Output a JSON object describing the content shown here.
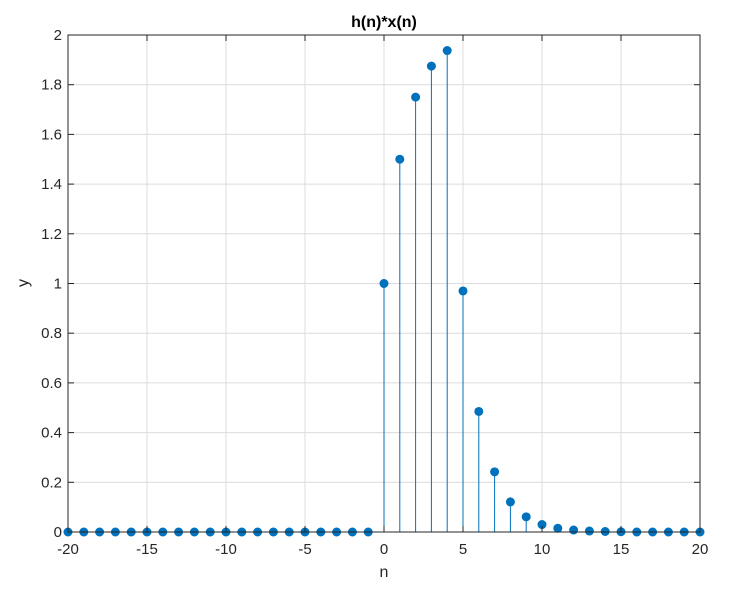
{
  "chart_data": {
    "type": "stem",
    "title": "h(n)*x(n)",
    "xlabel": "n",
    "ylabel": "y",
    "xlim": [
      -20,
      20
    ],
    "ylim": [
      0,
      2
    ],
    "grid": true,
    "color": "#0072BD",
    "xticks": [
      "-20",
      "-15",
      "-10",
      "-5",
      "0",
      "5",
      "10",
      "15",
      "20"
    ],
    "yticks": [
      "0",
      "0.2",
      "0.4",
      "0.6",
      "0.8",
      "1",
      "1.2",
      "1.4",
      "1.6",
      "1.8",
      "2"
    ],
    "x": [
      -20,
      -19,
      -18,
      -17,
      -16,
      -15,
      -14,
      -13,
      -12,
      -11,
      -10,
      -9,
      -8,
      -7,
      -6,
      -5,
      -4,
      -3,
      -2,
      -1,
      0,
      1,
      2,
      3,
      4,
      5,
      6,
      7,
      8,
      9,
      10,
      11,
      12,
      13,
      14,
      15,
      16,
      17,
      18,
      19,
      20
    ],
    "y": [
      0,
      0,
      0,
      0,
      0,
      0,
      0,
      0,
      0,
      0,
      0,
      0,
      0,
      0,
      0,
      0,
      0,
      0,
      0,
      0,
      1,
      1.5,
      1.75,
      1.875,
      1.9375,
      0.97,
      0.485,
      0.242,
      0.121,
      0.061,
      0.03,
      0.015,
      0.008,
      0.004,
      0.002,
      0.001,
      0,
      0,
      0,
      0,
      0
    ]
  }
}
